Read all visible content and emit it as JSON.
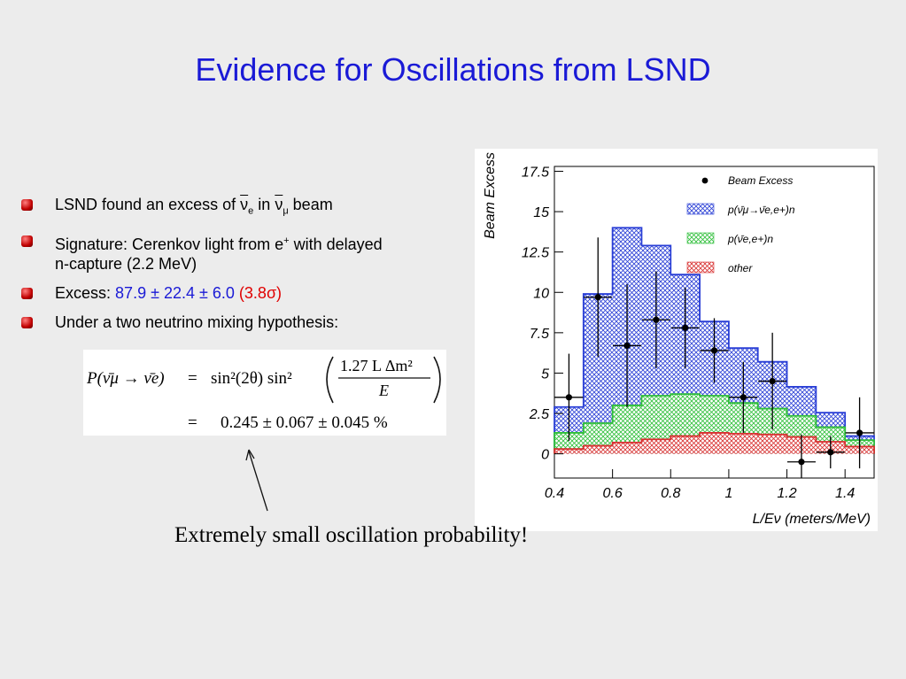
{
  "slide": {
    "title": "Evidence for Oscillations from LSND",
    "bullets": {
      "b1_pre": "LSND found an excess of",
      "b1_nu_e": "ν",
      "b1_e_sub": "e",
      "b1_in": "in",
      "b1_nu_mu": "ν",
      "b1_mu_sub": "μ",
      "b1_post": "beam",
      "b2_pre": "Signature: Cerenkov light from e",
      "b2_sup": "+",
      "b2_post": "with delayed",
      "b2_line2": "n-capture (2.2 MeV)",
      "b3_label": "Excess:",
      "b3_value": "87.9 ± 22.4 ± 6.0",
      "b3_sigma": "(3.8σ)",
      "b4": "Under a two neutrino mixing hypothesis:"
    },
    "formula": {
      "line1_lhs": "P(ν̄μ → ν̄e)",
      "line1_eq": "=",
      "line1_rhs": "sin²(2θ) sin²",
      "numerator": "1.27 L Δm²",
      "denominator": "E",
      "line2_eq": "=",
      "line2_rhs": "0.245 ± 0.067 ± 0.045 %"
    },
    "caption": "Extremely small oscillation probability!"
  },
  "colors": {
    "title": "#1a1ad6",
    "excess_value": "#1a1ad6",
    "sigma": "#e00000",
    "hist_blue": "#2a3fd6",
    "hist_green": "#2fbf3a",
    "hist_red": "#d83030"
  },
  "chart_data": {
    "type": "histogram",
    "xlabel": "L/Eν (meters/MeV)",
    "ylabel": "Beam Excess",
    "xlim": [
      0.4,
      1.5
    ],
    "ylim": [
      -1.5,
      17.8
    ],
    "x_ticks": [
      "0.4",
      "0.6",
      "0.8",
      "1",
      "1.2",
      "1.4"
    ],
    "x_tick_values": [
      0.4,
      0.6,
      0.8,
      1.0,
      1.2,
      1.4
    ],
    "y_ticks": [
      "0",
      "2.5",
      "5",
      "7.5",
      "10",
      "12.5",
      "15",
      "17.5"
    ],
    "y_tick_values": [
      0,
      2.5,
      5,
      7.5,
      10,
      12.5,
      15,
      17.5
    ],
    "bin_edges": [
      0.4,
      0.5,
      0.6,
      0.7,
      0.8,
      0.9,
      1.0,
      1.1,
      1.2,
      1.3,
      1.4,
      1.5
    ],
    "stack": [
      {
        "name": "other",
        "color": "#d83030",
        "values": [
          0.3,
          0.5,
          0.7,
          0.9,
          1.1,
          1.3,
          1.25,
          1.2,
          1.05,
          0.75,
          0.45
        ]
      },
      {
        "name": "p(ν̄e,e+)n",
        "color": "#2fbf3a",
        "values": [
          1.0,
          1.4,
          2.3,
          2.7,
          2.6,
          2.3,
          1.9,
          1.6,
          1.3,
          0.9,
          0.4
        ]
      },
      {
        "name": "p(ν̄μ→ν̄e,e+)n",
        "color": "#2a3fd6",
        "values": [
          1.6,
          8.0,
          11.0,
          9.3,
          7.4,
          4.6,
          3.4,
          2.9,
          1.8,
          0.9,
          0.25
        ]
      }
    ],
    "points": {
      "name": "Beam Excess",
      "x": [
        0.45,
        0.55,
        0.65,
        0.75,
        0.85,
        0.95,
        1.05,
        1.15,
        1.25,
        1.35,
        1.45
      ],
      "y": [
        3.5,
        9.7,
        6.7,
        8.3,
        7.8,
        6.4,
        3.5,
        4.5,
        -0.5,
        0.1,
        1.3
      ],
      "yerr": [
        2.7,
        3.7,
        3.8,
        3.0,
        2.5,
        2.0,
        2.2,
        3.0,
        1.7,
        1.0,
        2.2
      ]
    },
    "legend": {
      "placement": "top-right",
      "entries": [
        "Beam Excess",
        "p(ν̄μ→ν̄e,e+)n",
        "p(ν̄e,e+)n",
        "other"
      ]
    }
  }
}
